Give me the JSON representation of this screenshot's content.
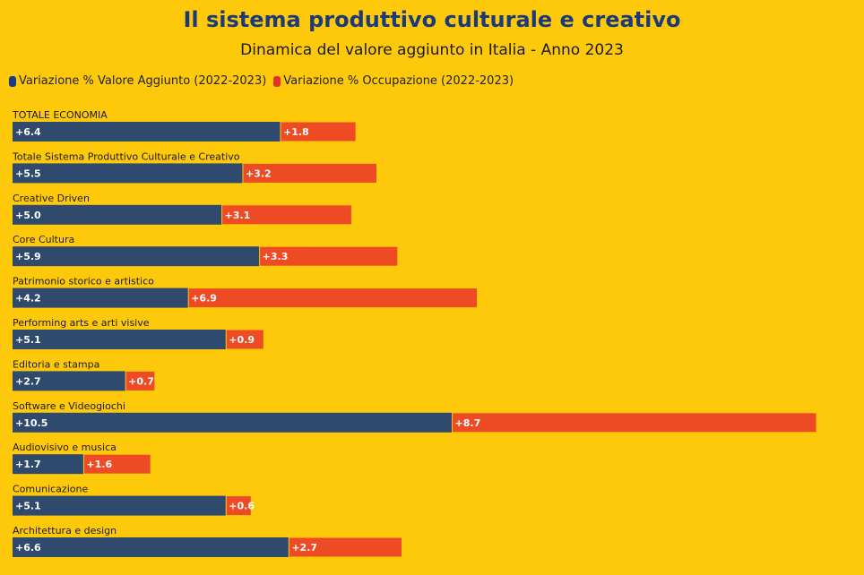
{
  "chart_data": {
    "type": "bar",
    "stacked": true,
    "orientation": "horizontal",
    "title": "Il sistema produttivo culturale e creativo",
    "subtitle": "Dinamica del valore aggiunto in Italia - Anno 2023",
    "legend_position": "top-left",
    "grid": false,
    "categories": [
      "TOTALE ECONOMIA",
      "Totale Sistema Produttivo Culturale e Creativo",
      "Creative Driven",
      "Core Cultura",
      "Patrimonio storico e artistico",
      "Performing arts e arti visive",
      "Editoria e stampa",
      "Software e Videogiochi",
      "Audiovisivo e musica",
      "Comunicazione",
      "Architettura e design"
    ],
    "series": [
      {
        "name": "Variazione % Valore Aggiunto (2022-2023)",
        "color": "#2F4A6D",
        "values": [
          6.4,
          5.5,
          5.0,
          5.9,
          4.2,
          5.1,
          2.7,
          10.5,
          1.7,
          5.1,
          6.6
        ],
        "labels": [
          "+6.4",
          "+5.5",
          "+5.0",
          "+5.9",
          "+4.2",
          "+5.1",
          "+2.7",
          "+10.5",
          "+1.7",
          "+5.1",
          "+6.6"
        ]
      },
      {
        "name": "Variazione % Occupazione (2022-2023)",
        "color": "#EE4A24",
        "values": [
          1.8,
          3.2,
          3.1,
          3.3,
          6.9,
          0.9,
          0.7,
          8.7,
          1.6,
          0.6,
          2.7
        ],
        "labels": [
          "+1.8",
          "+3.2",
          "+3.1",
          "+3.3",
          "+6.9",
          "+0.9",
          "+0.7",
          "+8.7",
          "+1.6",
          "+0.6",
          "+2.7"
        ]
      }
    ],
    "xlim": [
      0,
      19.2
    ]
  },
  "legend_swatch_colors": [
    "#1C3A8A",
    "#E8302A"
  ]
}
